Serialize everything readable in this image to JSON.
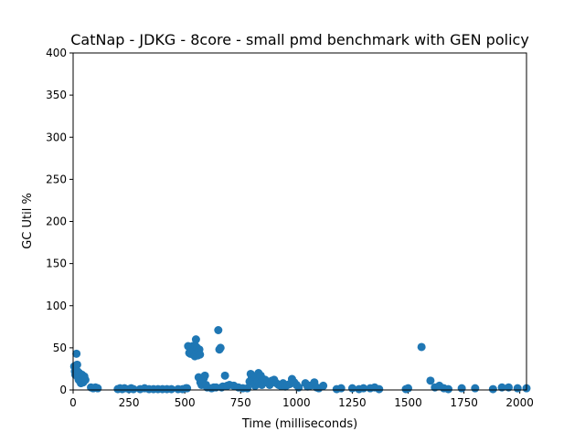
{
  "chart_data": {
    "type": "scatter",
    "title": "CatNap - JDKG - 8core -  small pmd benchmark with GEN policy",
    "xlabel": "Time (milliseconds)",
    "ylabel": "GC Util %",
    "xlim": [
      0,
      2030
    ],
    "ylim": [
      0,
      400
    ],
    "xticks": [
      0,
      250,
      500,
      750,
      1000,
      1250,
      1500,
      1750,
      2000
    ],
    "yticks": [
      0,
      50,
      100,
      150,
      200,
      250,
      300,
      350,
      400
    ],
    "xtick_labels": [
      "0",
      "250",
      "500",
      "750",
      "1000",
      "1250",
      "1500",
      "1750",
      "2000"
    ],
    "ytick_labels": [
      "0",
      "50",
      "100",
      "150",
      "200",
      "250",
      "300",
      "350",
      "400"
    ],
    "grid": false,
    "legend": "none",
    "series": [
      {
        "color": "#1f77b4",
        "points": [
          [
            5,
            28
          ],
          [
            8,
            22
          ],
          [
            10,
            18
          ],
          [
            12,
            25
          ],
          [
            15,
            43
          ],
          [
            18,
            30
          ],
          [
            20,
            22
          ],
          [
            22,
            15
          ],
          [
            25,
            12
          ],
          [
            28,
            20
          ],
          [
            30,
            16
          ],
          [
            32,
            10
          ],
          [
            35,
            8
          ],
          [
            38,
            14
          ],
          [
            40,
            18
          ],
          [
            42,
            11
          ],
          [
            45,
            9
          ],
          [
            48,
            13
          ],
          [
            50,
            16
          ],
          [
            55,
            12
          ],
          [
            80,
            3
          ],
          [
            90,
            2
          ],
          [
            100,
            3
          ],
          [
            110,
            2
          ],
          [
            200,
            1
          ],
          [
            210,
            2
          ],
          [
            220,
            1
          ],
          [
            230,
            2
          ],
          [
            250,
            1
          ],
          [
            260,
            2
          ],
          [
            270,
            1
          ],
          [
            300,
            1
          ],
          [
            320,
            2
          ],
          [
            340,
            1
          ],
          [
            360,
            1
          ],
          [
            380,
            1
          ],
          [
            400,
            1
          ],
          [
            420,
            1
          ],
          [
            440,
            1
          ],
          [
            470,
            1
          ],
          [
            490,
            1
          ],
          [
            505,
            2
          ],
          [
            510,
            2
          ],
          [
            515,
            52
          ],
          [
            520,
            44
          ],
          [
            525,
            43
          ],
          [
            530,
            43
          ],
          [
            535,
            52
          ],
          [
            540,
            47
          ],
          [
            545,
            40
          ],
          [
            548,
            52
          ],
          [
            550,
            60
          ],
          [
            552,
            44
          ],
          [
            555,
            50
          ],
          [
            558,
            41
          ],
          [
            560,
            46
          ],
          [
            562,
            15
          ],
          [
            565,
            48
          ],
          [
            568,
            42
          ],
          [
            570,
            9
          ],
          [
            575,
            6
          ],
          [
            580,
            12
          ],
          [
            585,
            14
          ],
          [
            590,
            17
          ],
          [
            595,
            6
          ],
          [
            600,
            3
          ],
          [
            620,
            2
          ],
          [
            630,
            3
          ],
          [
            640,
            3
          ],
          [
            650,
            71
          ],
          [
            655,
            48
          ],
          [
            660,
            50
          ],
          [
            665,
            3
          ],
          [
            670,
            4
          ],
          [
            680,
            17
          ],
          [
            690,
            5
          ],
          [
            700,
            6
          ],
          [
            720,
            5
          ],
          [
            740,
            3
          ],
          [
            760,
            2
          ],
          [
            780,
            2
          ],
          [
            790,
            10
          ],
          [
            795,
            19
          ],
          [
            800,
            14
          ],
          [
            805,
            11
          ],
          [
            810,
            7
          ],
          [
            815,
            5
          ],
          [
            820,
            16
          ],
          [
            825,
            10
          ],
          [
            830,
            20
          ],
          [
            835,
            8
          ],
          [
            840,
            17
          ],
          [
            845,
            6
          ],
          [
            850,
            13
          ],
          [
            855,
            9
          ],
          [
            860,
            12
          ],
          [
            870,
            9
          ],
          [
            880,
            6
          ],
          [
            890,
            11
          ],
          [
            900,
            12
          ],
          [
            910,
            8
          ],
          [
            920,
            6
          ],
          [
            930,
            5
          ],
          [
            940,
            8
          ],
          [
            950,
            4
          ],
          [
            960,
            6
          ],
          [
            970,
            7
          ],
          [
            980,
            13
          ],
          [
            990,
            9
          ],
          [
            1000,
            6
          ],
          [
            1010,
            3
          ],
          [
            1040,
            8
          ],
          [
            1050,
            4
          ],
          [
            1060,
            5
          ],
          [
            1080,
            9
          ],
          [
            1090,
            3
          ],
          [
            1100,
            2
          ],
          [
            1120,
            5
          ],
          [
            1180,
            1
          ],
          [
            1200,
            2
          ],
          [
            1250,
            2
          ],
          [
            1280,
            1
          ],
          [
            1300,
            2
          ],
          [
            1330,
            2
          ],
          [
            1350,
            3
          ],
          [
            1370,
            1
          ],
          [
            1490,
            1
          ],
          [
            1500,
            2
          ],
          [
            1560,
            51
          ],
          [
            1600,
            11
          ],
          [
            1620,
            3
          ],
          [
            1640,
            5
          ],
          [
            1660,
            2
          ],
          [
            1680,
            1
          ],
          [
            1740,
            2
          ],
          [
            1800,
            2
          ],
          [
            1880,
            1
          ],
          [
            1920,
            3
          ],
          [
            1950,
            3
          ],
          [
            1990,
            2
          ],
          [
            2030,
            2
          ]
        ]
      }
    ]
  }
}
